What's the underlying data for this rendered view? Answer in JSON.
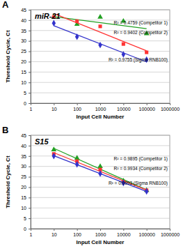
{
  "chart_data": [
    {
      "type": "scatter",
      "label": "A",
      "title": "miR-21",
      "x_label": "Input Cell Number",
      "y_label": "Threshold Cycle, Ct",
      "log": "x",
      "grid": true,
      "xlim": [
        1,
        1000000
      ],
      "xticks": [
        1,
        10,
        100,
        1000,
        10000,
        100000,
        1000000
      ],
      "ylim": [
        0,
        45
      ],
      "yticks": [
        0,
        5,
        10,
        15,
        20,
        25,
        30,
        35,
        40,
        45
      ],
      "x": [
        10,
        100,
        1000,
        10000,
        100000
      ],
      "series": [
        {
          "color": "#22a022",
          "marker": "triangle",
          "line_style": "solid",
          "values": [
            41.5,
            38,
            41.5,
            39.5,
            33.5
          ],
          "annotation": "R² = 0.4759 (Competitor 1)"
        },
        {
          "color": "#ff3333",
          "marker": "square",
          "line_style": "solid",
          "values": [
            41.5,
            39.5,
            37,
            28.5,
            24.5
          ],
          "annotation": "R² = 0.9402 (Competitor 2)"
        },
        {
          "color": "#3333cc",
          "marker": "diamond",
          "line_style": "solid",
          "values": [
            38.5,
            32,
            28,
            23.5,
            21
          ],
          "annotation": "R² = 0.9755 (Sigma RNB100)"
        }
      ]
    },
    {
      "type": "scatter",
      "label": "B",
      "title": "S15",
      "x_label": "Input Cell Number",
      "y_label": "Threshold Cycle, Ct",
      "log": "x",
      "grid": true,
      "xlim": [
        1,
        1000000
      ],
      "xticks": [
        1,
        10,
        100,
        1000,
        10000,
        100000,
        1000000
      ],
      "ylim": [
        0,
        45
      ],
      "yticks": [
        0,
        5,
        10,
        15,
        20,
        25,
        30,
        35,
        40,
        45
      ],
      "x": [
        10,
        100,
        1000,
        10000,
        100000
      ],
      "series": [
        {
          "color": "#22a022",
          "marker": "triangle",
          "line_style": "solid",
          "values": [
            38,
            34,
            30,
            23,
            18.5
          ],
          "annotation": "R² = 0.9895 (Competitor 1)"
        },
        {
          "color": "#ff3333",
          "marker": "square",
          "line_style": "solid",
          "values": [
            36,
            32.5,
            28.5,
            22.5,
            18.5
          ],
          "annotation": "R² = 0.9934 (Competitor 2)"
        },
        {
          "color": "#3333cc",
          "marker": "diamond",
          "line_style": "solid",
          "values": [
            35,
            31,
            26.5,
            22,
            18
          ],
          "annotation": "R² = 0.9993 (Sigma RNB100)"
        }
      ]
    }
  ]
}
